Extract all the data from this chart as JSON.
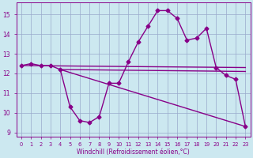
{
  "xlabel": "Windchill (Refroidissement éolien,°C)",
  "bg_color": "#cce8f0",
  "line_color": "#880088",
  "grid_color": "#99aacc",
  "xlim": [
    -0.5,
    23.5
  ],
  "ylim": [
    8.8,
    15.6
  ],
  "yticks": [
    9,
    10,
    11,
    12,
    13,
    14,
    15
  ],
  "xticks": [
    0,
    1,
    2,
    3,
    4,
    5,
    6,
    7,
    8,
    9,
    10,
    11,
    12,
    13,
    14,
    15,
    16,
    17,
    18,
    19,
    20,
    21,
    22,
    23
  ],
  "curve_x": [
    0,
    1,
    2,
    3,
    4,
    5,
    6,
    7,
    8,
    9,
    10,
    11,
    12,
    13,
    14,
    15,
    16,
    17,
    18,
    19,
    20,
    21,
    22,
    23
  ],
  "curve_y": [
    12.4,
    12.5,
    12.4,
    12.4,
    12.2,
    10.3,
    9.6,
    9.5,
    9.8,
    11.5,
    11.5,
    12.6,
    13.6,
    14.4,
    15.2,
    15.2,
    14.8,
    13.7,
    13.8,
    14.3,
    12.3,
    11.9,
    11.7,
    9.3
  ],
  "line1_x": [
    0,
    23
  ],
  "line1_y": [
    12.4,
    12.3
  ],
  "line2_x": [
    4,
    23
  ],
  "line2_y": [
    12.2,
    12.1
  ],
  "line3_x": [
    4,
    23
  ],
  "line3_y": [
    12.2,
    9.3
  ],
  "line_width": 1.0,
  "marker_size": 2.5,
  "tick_fontsize": 5.5,
  "xlabel_fontsize": 5.5
}
